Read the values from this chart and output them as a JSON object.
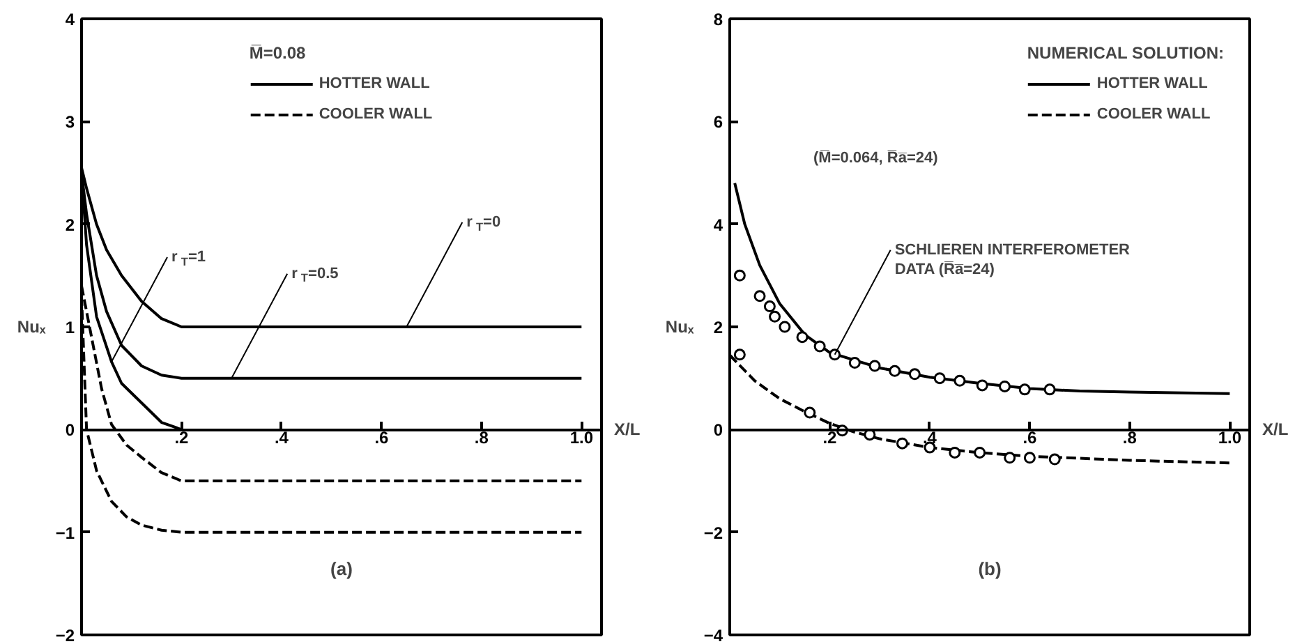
{
  "chart_data": [
    {
      "type": "line",
      "title": "(a)",
      "xlabel": "X/L",
      "ylabel": "Nuₓ",
      "legend_title": "M̅=0.08",
      "legend": "top",
      "grid": false,
      "xlim": [
        0,
        1.04
      ],
      "ylim": [
        -2,
        4
      ],
      "xticks": [
        {
          "value": 0.2,
          "label": ".2"
        },
        {
          "value": 0.4,
          "label": ".4"
        },
        {
          "value": 0.6,
          "label": ".6"
        },
        {
          "value": 0.8,
          "label": ".8"
        },
        {
          "value": 1.0,
          "label": "1.0"
        }
      ],
      "yticks": [
        -2,
        -1,
        0,
        1,
        2,
        3,
        4
      ],
      "series": [
        {
          "name": "HOTTER WALL",
          "color": "#000000",
          "line_style": "solid",
          "x": [
            0,
            0.01,
            0.03,
            0.05,
            0.08,
            0.12,
            0.16,
            0.2,
            1.0
          ],
          "values": [
            2.55,
            2.35,
            2.0,
            1.75,
            1.5,
            1.25,
            1.08,
            1.0,
            1.0
          ]
        },
        {
          "color": "#000000",
          "line_style": "solid",
          "x": [
            0,
            0.01,
            0.03,
            0.05,
            0.08,
            0.12,
            0.16,
            0.2,
            1.0
          ],
          "values": [
            2.5,
            2.1,
            1.5,
            1.15,
            0.82,
            0.62,
            0.53,
            0.5,
            0.5
          ]
        },
        {
          "color": "#000000",
          "line_style": "solid",
          "x": [
            0,
            0.01,
            0.03,
            0.06,
            0.08,
            0.12,
            0.16,
            0.2
          ],
          "values": [
            2.5,
            1.8,
            1.1,
            0.66,
            0.45,
            0.26,
            0.07,
            0.0
          ]
        },
        {
          "name": "COOLER WALL",
          "color": "#000000",
          "line_style": "dashed",
          "x": [
            0,
            0.02,
            0.04,
            0.06,
            0.09,
            0.12,
            0.16,
            0.2,
            1.0
          ],
          "values": [
            1.4,
            0.9,
            0.4,
            0.05,
            -0.15,
            -0.27,
            -0.42,
            -0.5,
            -0.5
          ]
        },
        {
          "color": "#000000",
          "line_style": "dashed",
          "x": [
            0,
            0.01,
            0.03,
            0.06,
            0.09,
            0.12,
            0.16,
            0.2,
            1.0
          ],
          "values": [
            1.3,
            0.0,
            -0.4,
            -0.7,
            -0.85,
            -0.93,
            -0.98,
            -1.0,
            -1.0
          ]
        }
      ],
      "annotations": [
        {
          "text": "r$_{T}$=1",
          "x": 0.06,
          "y": 0.66
        },
        {
          "text": "r$_{T}$=0.5",
          "x": 0.3,
          "y": 0.5
        },
        {
          "text": "r$_{T}$=0",
          "x": 0.65,
          "y": 1.0
        }
      ]
    },
    {
      "type": "line",
      "title": "(b)",
      "xlabel": "X/L",
      "ylabel": "Nuₓ",
      "legend_title": "NUMERICAL SOLUTION:",
      "legend": "top right",
      "grid": false,
      "xlim": [
        0,
        1.04
      ],
      "ylim": [
        -4,
        8
      ],
      "xticks": [
        {
          "value": 0.2,
          "label": ".2"
        },
        {
          "value": 0.4,
          "label": ".4"
        },
        {
          "value": 0.6,
          "label": ".6"
        },
        {
          "value": 0.8,
          "label": ".8"
        },
        {
          "value": 1.0,
          "label": "1.0"
        }
      ],
      "yticks": [
        -4,
        -2,
        0,
        2,
        4,
        6,
        8
      ],
      "series": [
        {
          "name": "HOTTER WALL",
          "color": "#000000",
          "line_style": "solid",
          "x": [
            0.01,
            0.03,
            0.06,
            0.1,
            0.15,
            0.2,
            0.3,
            0.4,
            0.5,
            0.6,
            0.7,
            0.8,
            1.0
          ],
          "values": [
            4.8,
            4.0,
            3.2,
            2.45,
            1.85,
            1.5,
            1.2,
            1.02,
            0.9,
            0.8,
            0.75,
            0.73,
            0.7
          ]
        },
        {
          "name": "COOLER WALL",
          "color": "#000000",
          "line_style": "dashed",
          "x": [
            0,
            0.05,
            0.1,
            0.15,
            0.2,
            0.25,
            0.3,
            0.4,
            0.5,
            0.6,
            0.8,
            1.0
          ],
          "values": [
            1.45,
            0.95,
            0.6,
            0.35,
            0.12,
            -0.05,
            -0.18,
            -0.35,
            -0.45,
            -0.52,
            -0.6,
            -0.65
          ]
        },
        {
          "type": "scatter",
          "marker": "circle",
          "color": "#000000",
          "x": [
            0.02,
            0.06,
            0.08,
            0.09,
            0.11,
            0.145,
            0.18,
            0.21,
            0.25,
            0.29,
            0.33,
            0.37,
            0.42,
            0.46,
            0.505,
            0.55,
            0.59,
            0.64
          ],
          "values": [
            3.0,
            2.6,
            2.4,
            2.2,
            2.0,
            1.8,
            1.62,
            1.46,
            1.3,
            1.24,
            1.14,
            1.08,
            1.0,
            0.95,
            0.86,
            0.84,
            0.78,
            0.78
          ]
        },
        {
          "type": "scatter",
          "marker": "circle",
          "color": "#000000",
          "x": [
            0.02,
            0.16,
            0.225,
            0.28,
            0.345,
            0.4,
            0.45,
            0.5,
            0.56,
            0.6,
            0.65
          ],
          "values": [
            1.46,
            0.33,
            -0.02,
            -0.1,
            -0.27,
            -0.35,
            -0.45,
            -0.45,
            -0.55,
            -0.55,
            -0.58
          ]
        }
      ],
      "annotations": [
        {
          "text": "SCHLIEREN INTERFEROMETER\nDATA (R̅a̅=24)",
          "x": 0.21,
          "y": 1.46
        },
        "(M̅=0.064, R̅a̅=24)"
      ]
    }
  ]
}
